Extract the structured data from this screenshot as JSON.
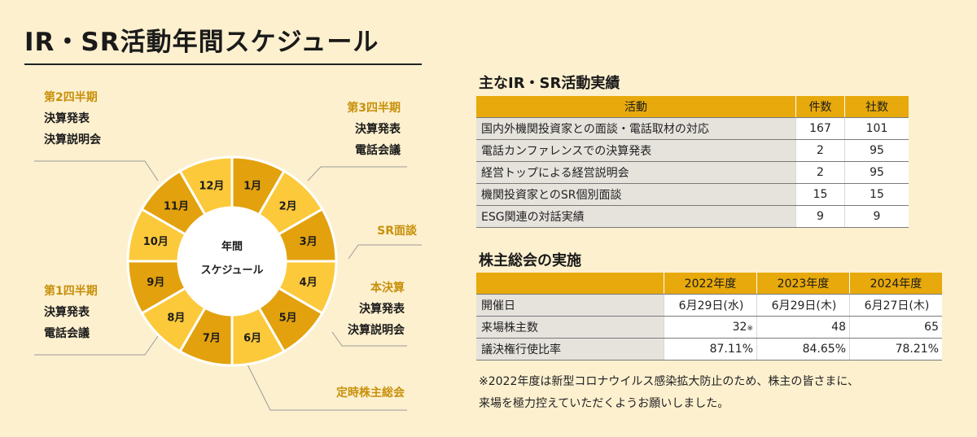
{
  "title": "IR・SR活動年間スケジュール",
  "wheel": {
    "center_line1": "年間",
    "center_line2": "スケジュール",
    "months": [
      "1月",
      "2月",
      "3月",
      "4月",
      "5月",
      "6月",
      "7月",
      "8月",
      "9月",
      "10月",
      "11月",
      "12月"
    ],
    "colors": {
      "dark": "#e2a10d",
      "light": "#fcc93a",
      "stroke": "#ffffff"
    }
  },
  "callouts": {
    "q2": {
      "head": "第2四半期",
      "items": [
        "決算発表",
        "決算説明会"
      ]
    },
    "q3": {
      "head": "第3四半期",
      "items": [
        "決算発表",
        "電話会議"
      ]
    },
    "sr": {
      "head": "SR面談"
    },
    "fy": {
      "head": "本決算",
      "items": [
        "決算発表",
        "決算説明会"
      ]
    },
    "q1": {
      "head": "第1四半期",
      "items": [
        "決算発表",
        "電話会議"
      ]
    },
    "agm": {
      "head": "定時株主総会"
    }
  },
  "activities": {
    "title": "主なIR・SR活動実績",
    "headers": [
      "活動",
      "件数",
      "社数"
    ],
    "rows": [
      [
        "国内外機関投資家との面談・電話取材の対応",
        "167",
        "101"
      ],
      [
        "電話カンファレンスでの決算発表",
        "2",
        "95"
      ],
      [
        "経営トップによる経営説明会",
        "2",
        "95"
      ],
      [
        "機関投資家とのSR個別面談",
        "15",
        "15"
      ],
      [
        "ESG関連の対話実績",
        "9",
        "9"
      ]
    ]
  },
  "agm_table": {
    "title": "株主総会の実施",
    "headers": [
      "",
      "2022年度",
      "2023年度",
      "2024年度"
    ],
    "rows": [
      {
        "label": "開催日",
        "values": [
          "6月29日(水)",
          "6月29日(木)",
          "6月27日(木)"
        ]
      },
      {
        "label": "来場株主数",
        "values": [
          "32",
          "48",
          "65"
        ],
        "note_mark": "※"
      },
      {
        "label": "議決権行使比率",
        "values": [
          "87.11%",
          "84.65%",
          "78.21%"
        ]
      }
    ]
  },
  "note": {
    "line1": "※2022年度は新型コロナウイルス感染拡大防止のため、株主の皆さまに、",
    "line2": "来場を極力控えていただくようお願いしました。"
  }
}
